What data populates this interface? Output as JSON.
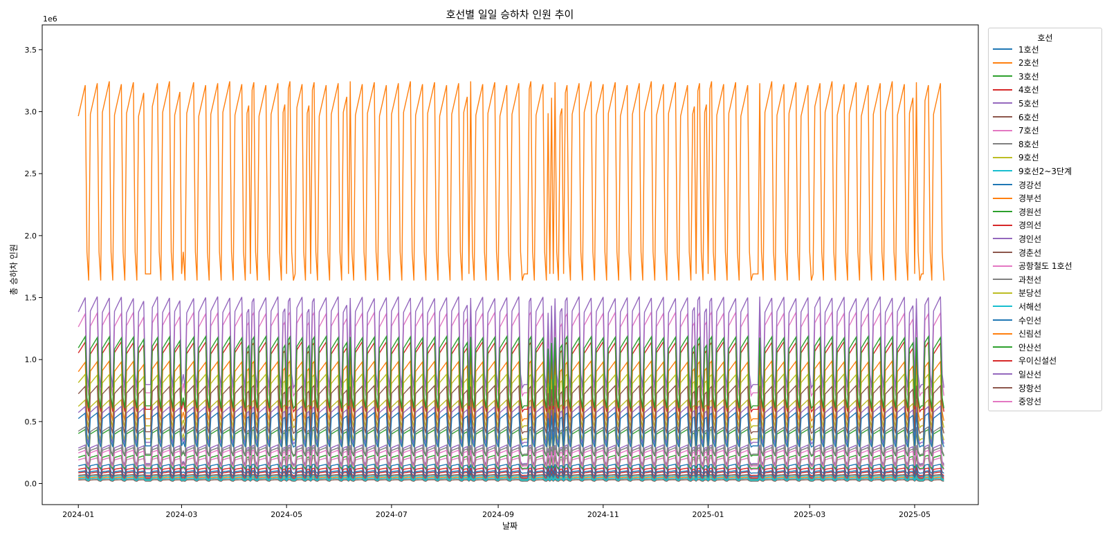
{
  "chart_data": {
    "type": "line",
    "title": "호선별 일일 승하차 인원 추이",
    "xlabel": "날짜",
    "ylabel": "총 승하차 인원",
    "y_scale_label": "1e6",
    "x_range": [
      "2023-12-11",
      "2025-06-07"
    ],
    "ylim": [
      -0.17,
      3.7
    ],
    "xticks": [
      "2024-01",
      "2024-03",
      "2024-05",
      "2024-07",
      "2024-09",
      "2024-11",
      "2025-01",
      "2025-03",
      "2025-05"
    ],
    "yticks": [
      "0.0",
      "0.5",
      "1.0",
      "1.5",
      "2.0",
      "2.5",
      "3.0",
      "3.5"
    ],
    "ytick_values": [
      0,
      0.5,
      1.0,
      1.5,
      2.0,
      2.5,
      3.0,
      3.5
    ],
    "x_start": "2024-01-01",
    "x_end": "2025-05-18",
    "legend_title": "호선",
    "legend_position": "outside-right",
    "grid": false,
    "series": [
      {
        "name": "1호선",
        "color": "#1f77b4",
        "weekday": 0.55,
        "weekend": 0.32
      },
      {
        "name": "2호선",
        "color": "#ff7f0e",
        "weekday": 3.12,
        "weekend": 1.78
      },
      {
        "name": "3호선",
        "color": "#2ca02c",
        "weekday": 1.14,
        "weekend": 0.66
      },
      {
        "name": "4호선",
        "color": "#d62728",
        "weekday": 1.1,
        "weekend": 0.63
      },
      {
        "name": "5호선",
        "color": "#9467bd",
        "weekday": 1.45,
        "weekend": 0.84
      },
      {
        "name": "6호선",
        "color": "#8c564b",
        "weekday": 0.76,
        "weekend": 0.44
      },
      {
        "name": "7호선",
        "color": "#e377c2",
        "weekday": 1.33,
        "weekend": 0.77
      },
      {
        "name": "8호선",
        "color": "#7f7f7f",
        "weekday": 0.44,
        "weekend": 0.25
      },
      {
        "name": "9호선",
        "color": "#bcbd22",
        "weekday": 0.85,
        "weekend": 0.49
      },
      {
        "name": "9호선2~3단계",
        "color": "#17becf",
        "weekday": 0.06,
        "weekend": 0.035
      },
      {
        "name": "경강선",
        "color": "#1f77b4",
        "weekday": 0.1,
        "weekend": 0.06
      },
      {
        "name": "경부선",
        "color": "#ff7f0e",
        "weekday": 0.95,
        "weekend": 0.55
      },
      {
        "name": "경원선",
        "color": "#2ca02c",
        "weekday": 0.42,
        "weekend": 0.24
      },
      {
        "name": "경의선",
        "color": "#d62728",
        "weekday": 0.12,
        "weekend": 0.07
      },
      {
        "name": "경인선",
        "color": "#9467bd",
        "weekday": 0.6,
        "weekend": 0.35
      },
      {
        "name": "경춘선",
        "color": "#8c564b",
        "weekday": 0.07,
        "weekend": 0.04
      },
      {
        "name": "공항철도 1호선",
        "color": "#e377c2",
        "weekday": 0.26,
        "weekend": 0.15
      },
      {
        "name": "과천선",
        "color": "#7f7f7f",
        "weekday": 0.28,
        "weekend": 0.16
      },
      {
        "name": "분당선",
        "color": "#bcbd22",
        "weekday": 0.65,
        "weekend": 0.38
      },
      {
        "name": "서해선",
        "color": "#17becf",
        "weekday": 0.04,
        "weekend": 0.025
      },
      {
        "name": "수인선",
        "color": "#1f77b4",
        "weekday": 0.15,
        "weekend": 0.09
      },
      {
        "name": "신림선",
        "color": "#ff7f0e",
        "weekday": 0.05,
        "weekend": 0.03
      },
      {
        "name": "안산선",
        "color": "#2ca02c",
        "weekday": 0.22,
        "weekend": 0.13
      },
      {
        "name": "우이신설선",
        "color": "#d62728",
        "weekday": 0.09,
        "weekend": 0.05
      },
      {
        "name": "일산선",
        "color": "#9467bd",
        "weekday": 0.3,
        "weekend": 0.17
      },
      {
        "name": "장항선",
        "color": "#8c564b",
        "weekday": 0.03,
        "weekend": 0.02
      },
      {
        "name": "중앙선",
        "color": "#e377c2",
        "weekday": 0.2,
        "weekend": 0.12
      }
    ]
  }
}
